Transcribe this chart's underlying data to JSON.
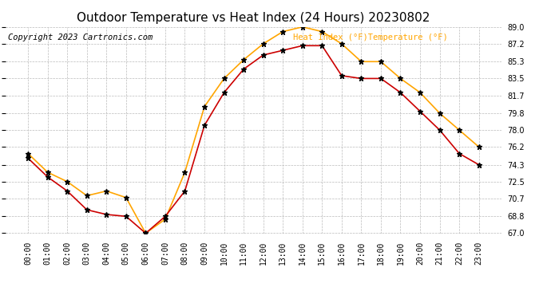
{
  "title": "Outdoor Temperature vs Heat Index (24 Hours) 20230802",
  "copyright": "Copyright 2023 Cartronics.com",
  "legend_heat": "Heat Index (°F)",
  "legend_temp": "Temperature (°F)",
  "hours": [
    "00:00",
    "01:00",
    "02:00",
    "03:00",
    "04:00",
    "05:00",
    "06:00",
    "07:00",
    "08:00",
    "09:00",
    "10:00",
    "11:00",
    "12:00",
    "13:00",
    "14:00",
    "15:00",
    "16:00",
    "17:00",
    "18:00",
    "19:00",
    "20:00",
    "21:00",
    "22:00",
    "23:00"
  ],
  "heat_index": [
    75.5,
    73.5,
    72.5,
    71.0,
    71.5,
    70.8,
    67.0,
    68.5,
    73.5,
    80.5,
    83.5,
    85.5,
    87.2,
    88.5,
    89.0,
    88.5,
    87.2,
    85.3,
    85.3,
    83.5,
    82.0,
    79.8,
    78.0,
    76.2
  ],
  "temperature": [
    75.0,
    73.0,
    71.5,
    69.5,
    69.0,
    68.8,
    67.0,
    68.8,
    71.5,
    78.5,
    82.0,
    84.5,
    86.0,
    86.5,
    87.0,
    87.0,
    83.8,
    83.5,
    83.5,
    82.0,
    80.0,
    78.0,
    75.5,
    74.3
  ],
  "heat_index_color": "#FFA500",
  "temperature_color": "#CC0000",
  "marker_color": "black",
  "ylim_min": 67.0,
  "ylim_max": 89.0,
  "yticks": [
    67.0,
    68.8,
    70.7,
    72.5,
    74.3,
    76.2,
    78.0,
    79.8,
    81.7,
    83.5,
    85.3,
    87.2,
    89.0
  ],
  "background_color": "#ffffff",
  "grid_color": "#bbbbbb",
  "title_fontsize": 11,
  "copyright_fontsize": 7.5,
  "legend_fontsize": 7.5,
  "tick_fontsize": 7.0
}
